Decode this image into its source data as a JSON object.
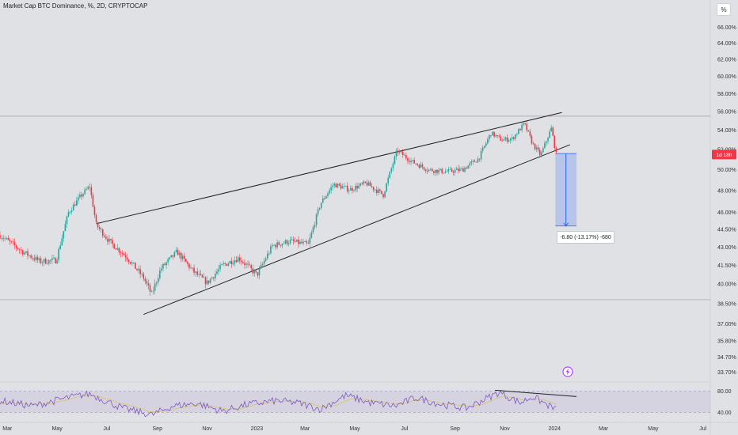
{
  "header": {
    "title": "Market Cap BTC Dominance, %, 2D, CRYPTOCAP"
  },
  "unit_button": {
    "label": "%"
  },
  "measure": {
    "label": "-6.80 (-13.17%) -680"
  },
  "alert_icon": "lightning-bolt-icon",
  "colors": {
    "up": "#26a69a",
    "down": "#f23645",
    "accent": "#2962ff",
    "rsi": "#7e57c2",
    "price_tag": "#f23645"
  },
  "chart_data": [
    {
      "type": "candlestick",
      "title": "Market Cap BTC Dominance, %, 2D, CRYPTOCAP",
      "price_tag": "1d 18h",
      "x_ticks": [
        "Mar",
        "May",
        "Jul",
        "Sep",
        "Nov",
        "2023",
        "Mar",
        "May",
        "Jul",
        "Sep",
        "Nov",
        "2024",
        "Mar",
        "May",
        "Jul"
      ],
      "y_ticks": [
        "66.00%",
        "64.00%",
        "62.00%",
        "60.00%",
        "58.00%",
        "56.00%",
        "54.00%",
        "52.00%",
        "50.00%",
        "48.00%",
        "46.00%",
        "44.50%",
        "43.00%",
        "41.50%",
        "40.00%",
        "38.50%",
        "37.00%",
        "35.80%",
        "34.70%",
        "33.70%"
      ],
      "yscale": "log",
      "ylim": [
        33.2,
        67.5
      ],
      "xlim": [
        "2022-02-20",
        "2024-07-10"
      ],
      "grid": false,
      "horizontal_lines": [
        55.5,
        38.8
      ],
      "wedge": {
        "upper": {
          "from": [
            "2022-06-18",
            45.0
          ],
          "to": [
            "2024-01-10",
            55.9
          ]
        },
        "lower": {
          "from": [
            "2022-08-15",
            37.7
          ],
          "to": [
            "2024-01-20",
            52.5
          ]
        }
      },
      "projection": {
        "from_date": "2024-01-02",
        "to_date": "2024-01-28",
        "start": 51.6,
        "end": 44.8,
        "change": -6.8
      },
      "series": [
        {
          "x": [
            "2022-02-20",
            "2022-03-20",
            "2022-04-10",
            "2022-04-30",
            "2022-05-15",
            "2022-05-30",
            "2022-06-10",
            "2022-06-18",
            "2022-07-05",
            "2022-07-25",
            "2022-08-15",
            "2022-08-25",
            "2022-09-05",
            "2022-09-25",
            "2022-10-15",
            "2022-11-01",
            "2022-11-20",
            "2022-12-10",
            "2023-01-01",
            "2023-01-20",
            "2023-02-10",
            "2023-03-05",
            "2023-03-20",
            "2023-04-05",
            "2023-04-25",
            "2023-05-15",
            "2023-06-05",
            "2023-06-22",
            "2023-07-10",
            "2023-07-30",
            "2023-08-20",
            "2023-09-10",
            "2023-09-30",
            "2023-10-15",
            "2023-10-28",
            "2023-11-10",
            "2023-11-25",
            "2023-12-05",
            "2023-12-15",
            "2023-12-28",
            "2024-01-03"
          ],
          "close": [
            44.0,
            42.6,
            41.8,
            41.9,
            46.0,
            47.5,
            48.4,
            44.9,
            43.4,
            42.2,
            40.5,
            39.2,
            41.2,
            42.6,
            41.0,
            40.1,
            41.5,
            42.1,
            40.7,
            43.1,
            43.5,
            43.2,
            46.8,
            48.6,
            48.1,
            48.7,
            47.6,
            51.9,
            50.8,
            50.0,
            49.8,
            50.0,
            51.1,
            53.7,
            53.0,
            53.1,
            54.7,
            52.6,
            51.4,
            54.2,
            51.5
          ]
        },
        {
          "type": "line",
          "name": "",
          "levels": [
            "80.00",
            "40.00"
          ],
          "ylim": [
            30,
            90
          ],
          "x": [
            "2022-02-20",
            "2022-04-01",
            "2022-05-15",
            "2022-06-10",
            "2022-07-20",
            "2022-08-25",
            "2022-09-20",
            "2022-10-20",
            "2022-11-20",
            "2022-12-20",
            "2023-01-25",
            "2023-02-20",
            "2023-03-20",
            "2023-04-20",
            "2023-05-20",
            "2023-06-20",
            "2023-07-15",
            "2023-08-15",
            "2023-09-15",
            "2023-10-25",
            "2023-11-20",
            "2023-12-05",
            "2023-12-28",
            "2024-01-03"
          ],
          "values": [
            62,
            52,
            68,
            75,
            48,
            35,
            52,
            57,
            42,
            55,
            62,
            58,
            46,
            72,
            58,
            52,
            68,
            55,
            48,
            78,
            58,
            70,
            50,
            45
          ],
          "divergence_line": {
            "from": [
              "2023-10-20",
              82
            ],
            "to": [
              "2024-01-28",
              70
            ]
          }
        }
      ]
    }
  ]
}
